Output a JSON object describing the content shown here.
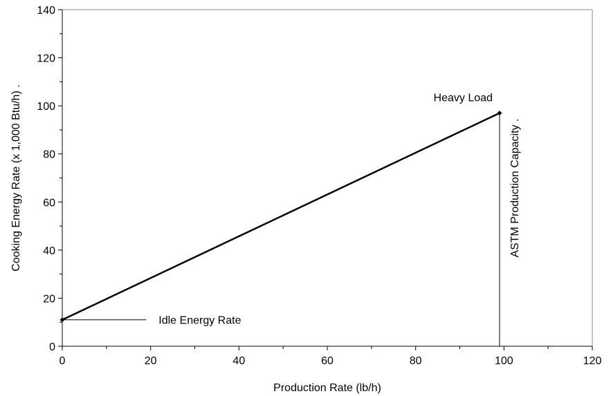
{
  "chart_data": {
    "type": "line",
    "title": "",
    "xlabel": "Production Rate (lb/h)",
    "ylabel": "Cooking Energy Rate (x 1,000 Btu/h)  .",
    "xlim": [
      0,
      120
    ],
    "ylim": [
      0,
      140
    ],
    "xticks": [
      0,
      20,
      40,
      60,
      80,
      100,
      120
    ],
    "yticks": [
      0,
      20,
      40,
      60,
      80,
      100,
      120,
      140
    ],
    "grid": false,
    "legend": "none",
    "series": [
      {
        "x": [
          0,
          99
        ],
        "y": [
          11,
          97
        ],
        "color": "#000000"
      }
    ],
    "annotations": [
      {
        "name": "idle-energy-rate",
        "text": "Idle Energy Rate",
        "point": [
          0,
          11
        ],
        "line_to_x": 19
      },
      {
        "name": "heavy-load",
        "text": "Heavy Load",
        "point": [
          99,
          97
        ]
      },
      {
        "name": "astm-production-capacity",
        "text": "ASTM Production Capacity  .",
        "vline_x": 99,
        "from_y": 0,
        "to_y": 97
      }
    ]
  }
}
